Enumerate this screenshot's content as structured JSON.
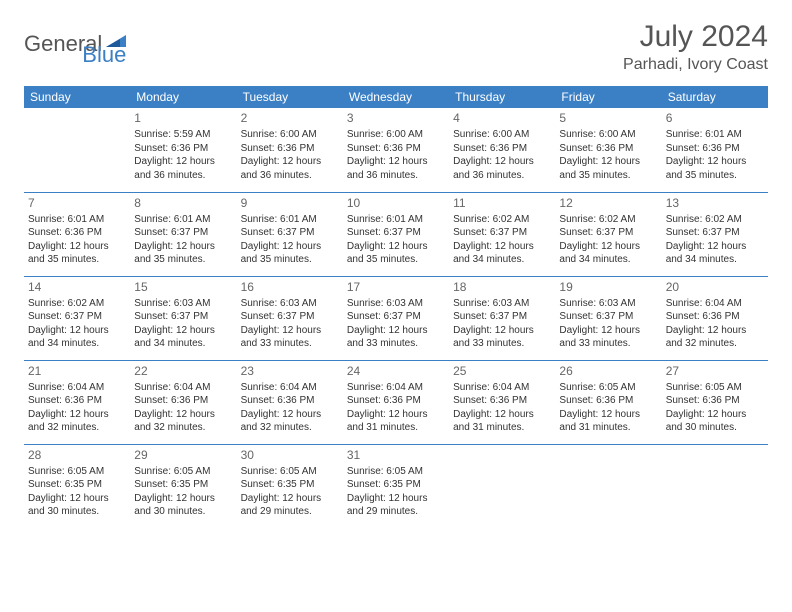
{
  "brand": {
    "part1": "General",
    "part2": "Blue"
  },
  "title": "July 2024",
  "location": "Parhadi, Ivory Coast",
  "colors": {
    "header_bg": "#3b7fc4",
    "header_text": "#ffffff",
    "brand_gray": "#555555",
    "brand_blue": "#3b7fc4",
    "cell_text": "#333333",
    "daynum": "#666666",
    "separator": "#3b7fc4"
  },
  "weekdays": [
    "Sunday",
    "Monday",
    "Tuesday",
    "Wednesday",
    "Thursday",
    "Friday",
    "Saturday"
  ],
  "weeks": [
    [
      null,
      {
        "d": "1",
        "sr": "5:59 AM",
        "ss": "6:36 PM",
        "dl": "12 hours and 36 minutes."
      },
      {
        "d": "2",
        "sr": "6:00 AM",
        "ss": "6:36 PM",
        "dl": "12 hours and 36 minutes."
      },
      {
        "d": "3",
        "sr": "6:00 AM",
        "ss": "6:36 PM",
        "dl": "12 hours and 36 minutes."
      },
      {
        "d": "4",
        "sr": "6:00 AM",
        "ss": "6:36 PM",
        "dl": "12 hours and 36 minutes."
      },
      {
        "d": "5",
        "sr": "6:00 AM",
        "ss": "6:36 PM",
        "dl": "12 hours and 35 minutes."
      },
      {
        "d": "6",
        "sr": "6:01 AM",
        "ss": "6:36 PM",
        "dl": "12 hours and 35 minutes."
      }
    ],
    [
      {
        "d": "7",
        "sr": "6:01 AM",
        "ss": "6:36 PM",
        "dl": "12 hours and 35 minutes."
      },
      {
        "d": "8",
        "sr": "6:01 AM",
        "ss": "6:37 PM",
        "dl": "12 hours and 35 minutes."
      },
      {
        "d": "9",
        "sr": "6:01 AM",
        "ss": "6:37 PM",
        "dl": "12 hours and 35 minutes."
      },
      {
        "d": "10",
        "sr": "6:01 AM",
        "ss": "6:37 PM",
        "dl": "12 hours and 35 minutes."
      },
      {
        "d": "11",
        "sr": "6:02 AM",
        "ss": "6:37 PM",
        "dl": "12 hours and 34 minutes."
      },
      {
        "d": "12",
        "sr": "6:02 AM",
        "ss": "6:37 PM",
        "dl": "12 hours and 34 minutes."
      },
      {
        "d": "13",
        "sr": "6:02 AM",
        "ss": "6:37 PM",
        "dl": "12 hours and 34 minutes."
      }
    ],
    [
      {
        "d": "14",
        "sr": "6:02 AM",
        "ss": "6:37 PM",
        "dl": "12 hours and 34 minutes."
      },
      {
        "d": "15",
        "sr": "6:03 AM",
        "ss": "6:37 PM",
        "dl": "12 hours and 34 minutes."
      },
      {
        "d": "16",
        "sr": "6:03 AM",
        "ss": "6:37 PM",
        "dl": "12 hours and 33 minutes."
      },
      {
        "d": "17",
        "sr": "6:03 AM",
        "ss": "6:37 PM",
        "dl": "12 hours and 33 minutes."
      },
      {
        "d": "18",
        "sr": "6:03 AM",
        "ss": "6:37 PM",
        "dl": "12 hours and 33 minutes."
      },
      {
        "d": "19",
        "sr": "6:03 AM",
        "ss": "6:37 PM",
        "dl": "12 hours and 33 minutes."
      },
      {
        "d": "20",
        "sr": "6:04 AM",
        "ss": "6:36 PM",
        "dl": "12 hours and 32 minutes."
      }
    ],
    [
      {
        "d": "21",
        "sr": "6:04 AM",
        "ss": "6:36 PM",
        "dl": "12 hours and 32 minutes."
      },
      {
        "d": "22",
        "sr": "6:04 AM",
        "ss": "6:36 PM",
        "dl": "12 hours and 32 minutes."
      },
      {
        "d": "23",
        "sr": "6:04 AM",
        "ss": "6:36 PM",
        "dl": "12 hours and 32 minutes."
      },
      {
        "d": "24",
        "sr": "6:04 AM",
        "ss": "6:36 PM",
        "dl": "12 hours and 31 minutes."
      },
      {
        "d": "25",
        "sr": "6:04 AM",
        "ss": "6:36 PM",
        "dl": "12 hours and 31 minutes."
      },
      {
        "d": "26",
        "sr": "6:05 AM",
        "ss": "6:36 PM",
        "dl": "12 hours and 31 minutes."
      },
      {
        "d": "27",
        "sr": "6:05 AM",
        "ss": "6:36 PM",
        "dl": "12 hours and 30 minutes."
      }
    ],
    [
      {
        "d": "28",
        "sr": "6:05 AM",
        "ss": "6:35 PM",
        "dl": "12 hours and 30 minutes."
      },
      {
        "d": "29",
        "sr": "6:05 AM",
        "ss": "6:35 PM",
        "dl": "12 hours and 30 minutes."
      },
      {
        "d": "30",
        "sr": "6:05 AM",
        "ss": "6:35 PM",
        "dl": "12 hours and 29 minutes."
      },
      {
        "d": "31",
        "sr": "6:05 AM",
        "ss": "6:35 PM",
        "dl": "12 hours and 29 minutes."
      },
      null,
      null,
      null
    ]
  ],
  "labels": {
    "sunrise": "Sunrise:",
    "sunset": "Sunset:",
    "daylight": "Daylight:"
  }
}
